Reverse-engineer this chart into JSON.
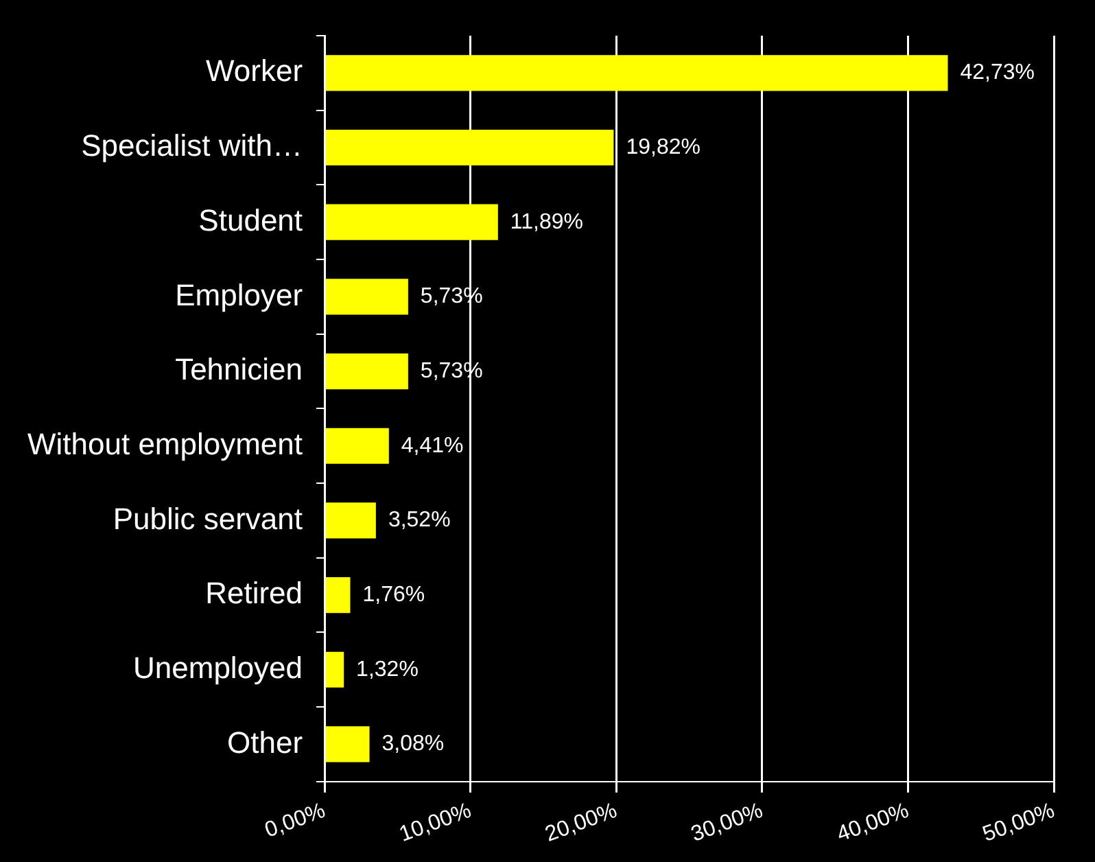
{
  "chart_data": {
    "type": "bar",
    "orientation": "horizontal",
    "categories": [
      "Worker",
      "Specialist with…",
      "Student",
      "Employer",
      "Tehnicien",
      "Without employment",
      "Public servant",
      "Retired",
      "Unemployed",
      "Other"
    ],
    "values": [
      42.73,
      19.82,
      11.89,
      5.73,
      5.73,
      4.41,
      3.52,
      1.76,
      1.32,
      3.08
    ],
    "value_labels": [
      "42,73%",
      "19,82%",
      "11,89%",
      "5,73%",
      "5,73%",
      "4,41%",
      "3,52%",
      "1,76%",
      "1,32%",
      "3,08%"
    ],
    "color": "#ffff00",
    "xlim": [
      0,
      50
    ],
    "xticks": [
      {
        "value": 0,
        "label": "0,00%"
      },
      {
        "value": 10,
        "label": "10,00%"
      },
      {
        "value": 20,
        "label": "20,00%"
      },
      {
        "value": 30,
        "label": "30,00%"
      },
      {
        "value": 40,
        "label": "40,00%"
      },
      {
        "value": 50,
        "label": "50,00%"
      }
    ],
    "grid": "x",
    "legend": false
  }
}
